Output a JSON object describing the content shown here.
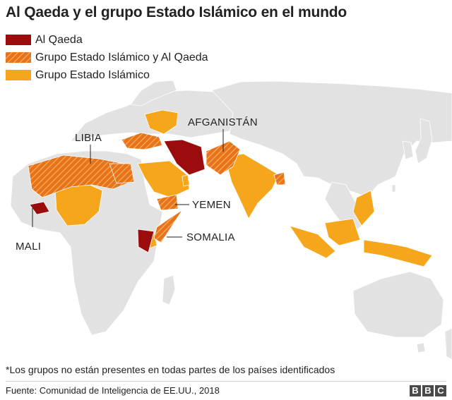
{
  "title": "Al Qaeda y el grupo Estado Islámico en el mundo",
  "legend": [
    {
      "label": "Al Qaeda",
      "pattern": "solid-dark-red"
    },
    {
      "label": "Grupo Estado Islámico y Al Qaeda",
      "pattern": "orange-hatched"
    },
    {
      "label": "Grupo Estado Islámico",
      "pattern": "solid-orange"
    }
  ],
  "colors": {
    "al_qaeda": "#9b0d0d",
    "hatch_base": "#e8731a",
    "hatch_line": "#f6b76a",
    "islamic_state": "#f6a61b",
    "land": "#e2e2e2",
    "land_border": "#ffffff",
    "ocean": "#ffffff"
  },
  "map": {
    "labels": {
      "libia": "LIBIA",
      "afganistan": "AFGANISTÁN",
      "yemen": "YEMEN",
      "somalia": "SOMALIA",
      "mali": "MALI"
    }
  },
  "note": "*Los grupos no están presentes en todas partes de los países identificados",
  "source": "Fuente: Comunidad de Inteligencia de EE.UU., 2018",
  "logo": [
    "B",
    "B",
    "C"
  ]
}
